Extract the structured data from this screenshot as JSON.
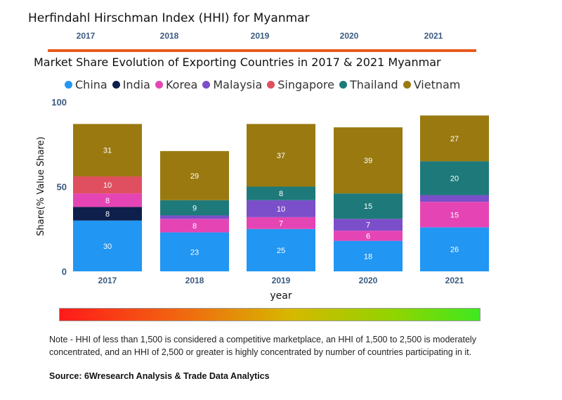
{
  "hhi": {
    "title": "Herfindahl Hirschman Index (HHI) for Myanmar",
    "years": [
      "2017",
      "2018",
      "2019",
      "2020",
      "2021"
    ],
    "line_color": "#e85a1e"
  },
  "chart_data": {
    "type": "bar",
    "stacked": true,
    "title": "Market Share Evolution of Exporting Countries in 2017 & 2021 Myanmar",
    "xlabel": "year",
    "ylabel": "Share(% Value Share)",
    "ylim": [
      0,
      100
    ],
    "yticks": [
      "0",
      "50",
      "100"
    ],
    "categories": [
      "2017",
      "2018",
      "2019",
      "2020",
      "2021"
    ],
    "series": [
      {
        "name": "China",
        "color": "#2196f3",
        "values": [
          30,
          23,
          25,
          18,
          26
        ],
        "labels": [
          "30",
          "23",
          "25",
          "18",
          "26"
        ]
      },
      {
        "name": "India",
        "color": "#0d1f4a",
        "values": [
          8,
          0,
          0,
          0,
          0
        ],
        "labels": [
          "8",
          "",
          "",
          "",
          ""
        ]
      },
      {
        "name": "Korea",
        "color": "#e545b4",
        "values": [
          8,
          8,
          7,
          6,
          15
        ],
        "labels": [
          "8",
          "8",
          "7",
          "6",
          "15"
        ]
      },
      {
        "name": "Malaysia",
        "color": "#7b4fc9",
        "values": [
          0,
          2,
          10,
          7,
          4
        ],
        "labels": [
          "",
          "",
          "10",
          "7",
          ""
        ]
      },
      {
        "name": "Singapore",
        "color": "#e04f5f",
        "values": [
          10,
          0,
          0,
          0,
          0
        ],
        "labels": [
          "10",
          "",
          "",
          "",
          ""
        ]
      },
      {
        "name": "Thailand",
        "color": "#1e7a7a",
        "values": [
          0,
          9,
          8,
          15,
          20
        ],
        "labels": [
          "",
          "9",
          "8",
          "15",
          "20"
        ]
      },
      {
        "name": "Vietnam",
        "color": "#9a7a10",
        "values": [
          31,
          29,
          37,
          39,
          27
        ],
        "labels": [
          "31",
          "29",
          "37",
          "39",
          "27"
        ]
      }
    ]
  },
  "gradient": {
    "colors": [
      "#ff1a1a",
      "#f06a10",
      "#d6b800",
      "#8fd400",
      "#3ee820"
    ]
  },
  "note": "Note - HHI of less than 1,500 is considered a competitive marketplace, an HHI of 1,500 to 2,500 is moderately concentrated, and an HHI of 2,500 or greater is highly concentrated by number of countries participating in it.",
  "source": "Source: 6Wresearch Analysis & Trade Data Analytics"
}
